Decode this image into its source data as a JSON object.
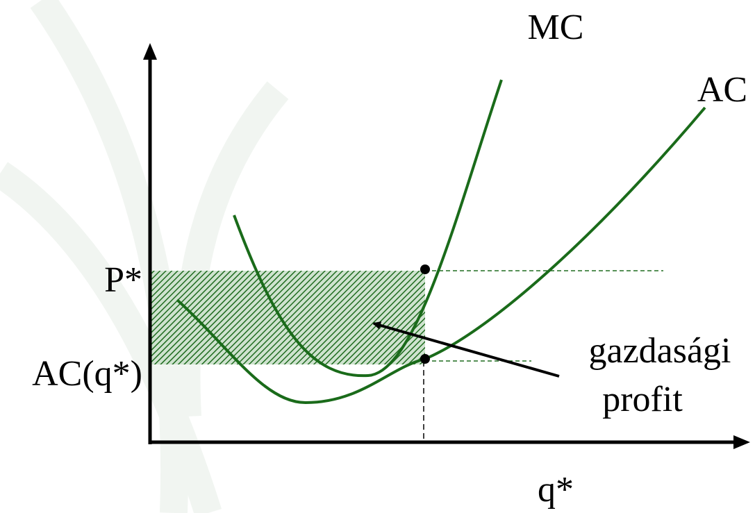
{
  "labels": {
    "mc": "MC",
    "ac": "AC",
    "price": "P*",
    "avg_cost": "AC(q*)",
    "profit": [
      "gazdasági",
      "profit"
    ],
    "quantity": "q*"
  }
}
